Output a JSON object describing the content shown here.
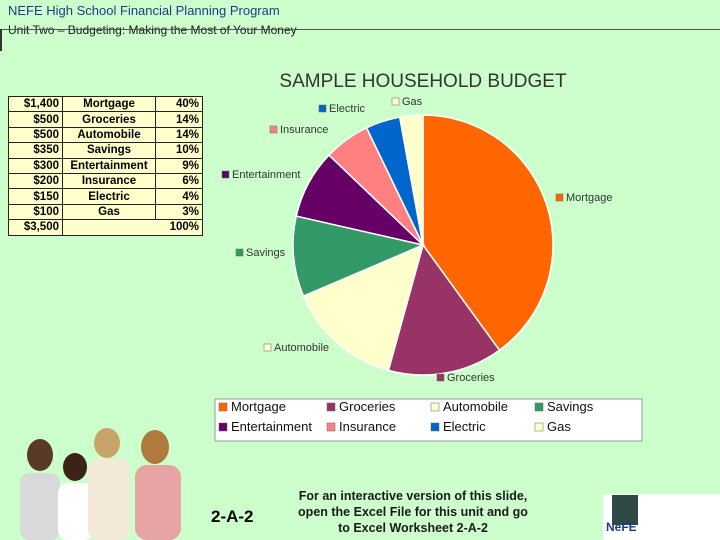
{
  "header": {
    "title": "NEFE High School Financial Planning Program",
    "subtitle": "Unit Two – Budgeting: Making the Most of Your Money"
  },
  "table": {
    "rows": [
      {
        "amount": "$1,400",
        "category": "Mortgage",
        "percent": "40%"
      },
      {
        "amount": "$500",
        "category": "Groceries",
        "percent": "14%"
      },
      {
        "amount": "$500",
        "category": "Automobile",
        "percent": "14%"
      },
      {
        "amount": "$350",
        "category": "Savings",
        "percent": "10%"
      },
      {
        "amount": "$300",
        "category": "Entertainment",
        "percent": "9%"
      },
      {
        "amount": "$200",
        "category": "Insurance",
        "percent": "6%"
      },
      {
        "amount": "$150",
        "category": "Electric",
        "percent": "4%"
      },
      {
        "amount": "$100",
        "category": "Gas",
        "percent": "3%"
      }
    ],
    "total": {
      "amount": "$3,500",
      "category": "",
      "percent": "100%"
    }
  },
  "chart_data": {
    "type": "pie",
    "title": "SAMPLE HOUSEHOLD BUDGET",
    "categories": [
      "Mortgage",
      "Groceries",
      "Automobile",
      "Savings",
      "Entertainment",
      "Insurance",
      "Electric",
      "Gas"
    ],
    "values": [
      1400,
      500,
      500,
      350,
      300,
      200,
      150,
      100
    ],
    "colors": [
      "#ff6600",
      "#993366",
      "#ffffcc",
      "#339966",
      "#660066",
      "#ff8080",
      "#0066cc",
      "#ffffcc"
    ],
    "legend_position": "bottom",
    "legend": [
      "Mortgage",
      "Groceries",
      "Automobile",
      "Savings",
      "Entertainment",
      "Insurance",
      "Electric",
      "Gas"
    ],
    "slice_labels": [
      "Mortgage",
      "Groceries",
      "Automobile",
      "Savings",
      "Entertainment",
      "Insurance",
      "Electric",
      "Gas"
    ]
  },
  "footer": {
    "code": "2-A-2",
    "note_lines": [
      "For an interactive version of this slide,",
      "open the Excel File for this unit and go",
      "to Excel Worksheet 2-A-2"
    ],
    "logo_text": "NeFE"
  }
}
